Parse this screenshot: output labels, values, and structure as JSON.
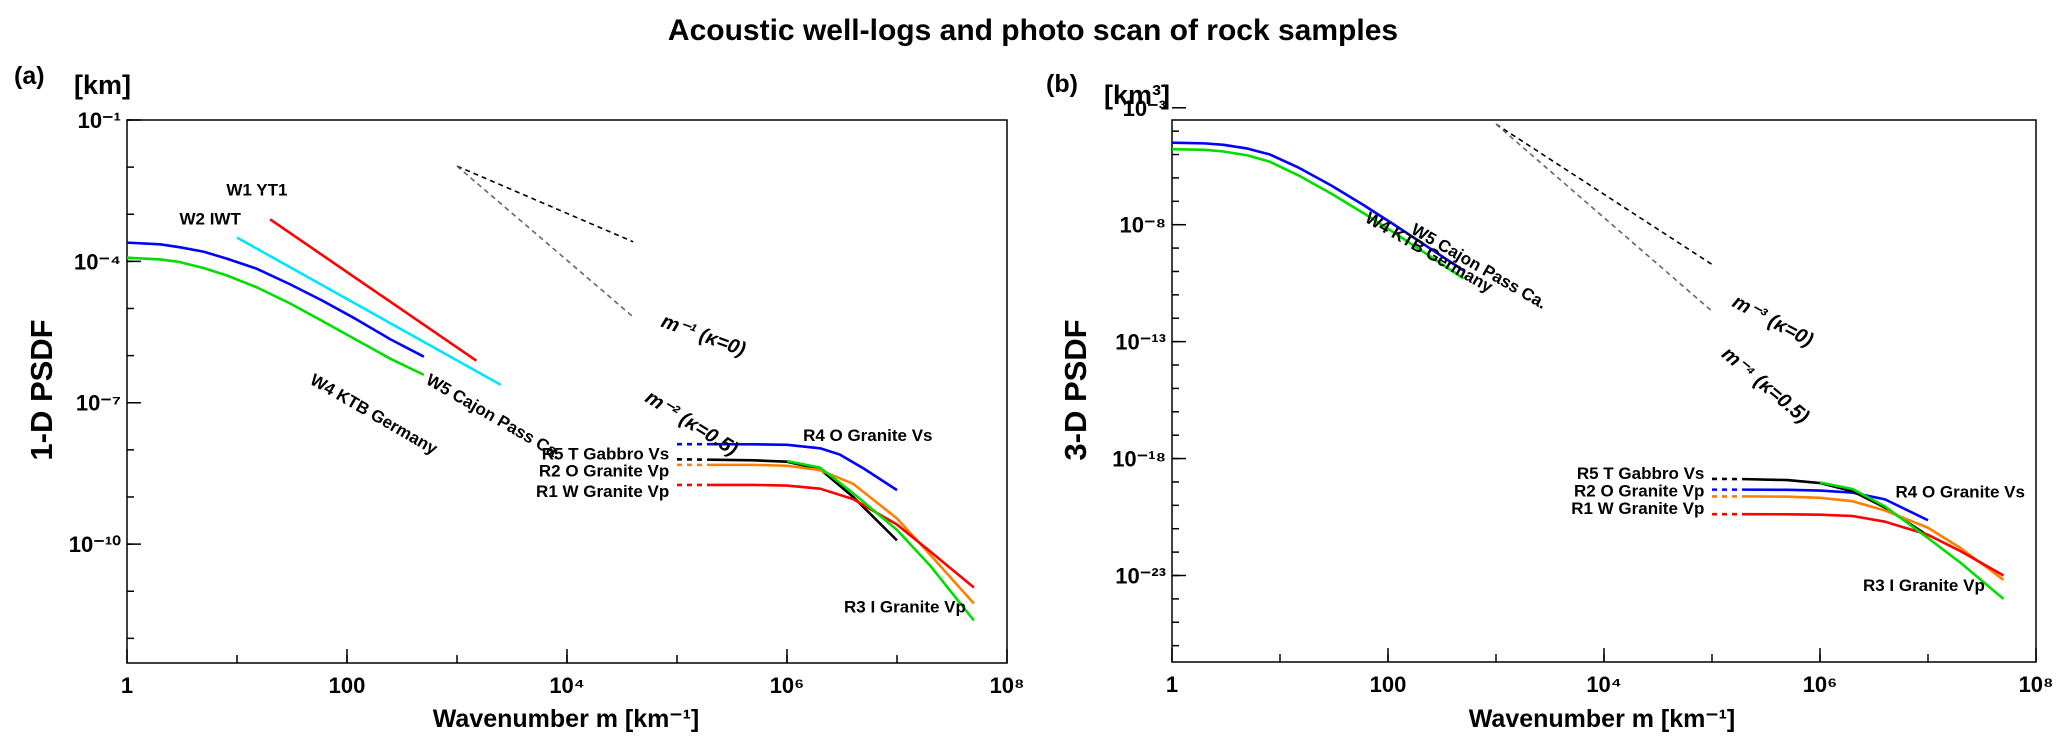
{
  "figure": {
    "title": "Acoustic well-logs and photo scan of rock samples"
  },
  "chart_data": [
    {
      "panel": "(a)",
      "type": "line",
      "unit_label": "[km]",
      "ylabel": "1-D PSDF",
      "xlabel": "Wavenumber m [km⁻¹]",
      "xscale": "log",
      "yscale": "log",
      "xlim": [
        1,
        100000000
      ],
      "ylim": [
        3e-13,
        0.1
      ],
      "xticks": [
        {
          "value": 1,
          "label": "1"
        },
        {
          "value": 100,
          "label": "100"
        },
        {
          "value": 10000,
          "label": "10⁴"
        },
        {
          "value": 1000000,
          "label": "10⁶"
        },
        {
          "value": 100000000,
          "label": "10⁸"
        }
      ],
      "yticks": [
        {
          "value": 0.1,
          "label": "10⁻¹"
        },
        {
          "value": 0.0001,
          "label": "10⁻⁴"
        },
        {
          "value": 1e-07,
          "label": "10⁻⁷"
        },
        {
          "value": 1e-10,
          "label": "10⁻¹⁰"
        }
      ],
      "series": [
        {
          "name": "W1 YT1",
          "color": "#ff0000",
          "label_at": [
            8,
            0.0025
          ],
          "points": [
            [
              20,
              0.00078
            ],
            [
              1500,
              7.8e-07
            ]
          ]
        },
        {
          "name": "W2 IWT",
          "color": "#00e5ff",
          "label_at": [
            3,
            0.0006
          ],
          "points": [
            [
              10,
              0.00032
            ],
            [
              2500,
              2.4e-07
            ]
          ]
        },
        {
          "name": "W5 Cajon Pass Ca.",
          "color": "#0000ff",
          "label_at": [
            510,
            2.6e-07
          ],
          "label_angle": 30,
          "points": [
            [
              1,
              0.00025
            ],
            [
              2,
              0.00023
            ],
            [
              3,
              0.0002
            ],
            [
              5,
              0.00016
            ],
            [
              8,
              0.000115
            ],
            [
              15,
              7.03e-05
            ],
            [
              30,
              3.31e-05
            ],
            [
              60,
              1.46e-05
            ],
            [
              120,
              6e-06
            ],
            [
              250,
              2.2e-06
            ],
            [
              500,
              9.5e-07
            ]
          ]
        },
        {
          "name": "W4 KTB Germany",
          "color": "#00dd00",
          "label_at": [
            45,
            2.6e-07
          ],
          "label_angle": 30,
          "points": [
            [
              1,
              0.00012
            ],
            [
              2,
              0.00011
            ],
            [
              3,
              9.72e-05
            ],
            [
              5,
              7.2e-05
            ],
            [
              8,
              5.08e-05
            ],
            [
              15,
              2.84e-05
            ],
            [
              30,
              1.3e-05
            ],
            [
              60,
              5.4e-06
            ],
            [
              120,
              2.2e-06
            ],
            [
              250,
              8.5e-07
            ],
            [
              500,
              3.9e-07
            ]
          ]
        },
        {
          "name": "R4 O Granite Vs",
          "color": "#0000ff",
          "label_at": [
            1400000,
            1.55e-08
          ],
          "dashed_points": [
            [
              100000,
              1.32e-08
            ],
            [
              200000,
              1.32e-08
            ]
          ],
          "points": [
            [
              200000,
              1.32e-08
            ],
            [
              500000,
              1.31e-08
            ],
            [
              1000000,
              1.28e-08
            ],
            [
              2000000,
              1.08e-08
            ],
            [
              3000000,
              8e-09
            ],
            [
              5000000,
              4e-09
            ],
            [
              10000000,
              1.4e-09
            ]
          ]
        },
        {
          "name": "R5 T Gabbro Vs",
          "color": "#000000",
          "label_at": [
            85000,
            6.3e-09
          ],
          "label_anchor": "end",
          "dashed_points": [
            [
              100000,
              6.3e-09
            ],
            [
              200000,
              6.2e-09
            ]
          ],
          "points": [
            [
              200000,
              6.2e-09
            ],
            [
              500000,
              6e-09
            ],
            [
              1000000,
              5.6e-09
            ],
            [
              2000000,
              3.9e-09
            ],
            [
              4000000,
              1e-09
            ],
            [
              10000000,
              1.2e-10
            ]
          ]
        },
        {
          "name": "R2 O Granite Vp",
          "color": "#ff8000",
          "label_at": [
            85000,
            2.7e-09
          ],
          "label_anchor": "end",
          "dashed_points": [
            [
              100000,
              4.8e-09
            ],
            [
              200000,
              4.8e-09
            ]
          ],
          "points": [
            [
              200000,
              4.8e-09
            ],
            [
              500000,
              4.8e-09
            ],
            [
              1000000,
              4.6e-09
            ],
            [
              2000000,
              3.7e-09
            ],
            [
              4000000,
              1.9e-09
            ],
            [
              10000000,
              3.5e-10
            ],
            [
              20000000,
              6e-11
            ],
            [
              50000000,
              5.5e-12
            ]
          ]
        },
        {
          "name": "R1 W Granite Vp",
          "color": "#ff0000",
          "label_at": [
            85000,
            1e-09
          ],
          "label_anchor": "end",
          "dashed_points": [
            [
              100000,
              1.8e-09
            ],
            [
              200000,
              1.8e-09
            ]
          ],
          "points": [
            [
              200000,
              1.8e-09
            ],
            [
              500000,
              1.8e-09
            ],
            [
              1000000,
              1.75e-09
            ],
            [
              2000000,
              1.5e-09
            ],
            [
              4000000,
              9e-10
            ],
            [
              10000000,
              2.6e-10
            ],
            [
              20000000,
              7e-11
            ],
            [
              50000000,
              1.2e-11
            ]
          ]
        },
        {
          "name": "R3 I Granite Vp",
          "color": "#00dd00",
          "label_at": [
            3300000,
            3.5e-12
          ],
          "points": [
            [
              1000000,
              5.8e-09
            ],
            [
              2000000,
              4.2e-09
            ],
            [
              4000000,
              1.2e-09
            ],
            [
              10000000,
              2e-10
            ],
            [
              20000000,
              3.5e-11
            ],
            [
              50000000,
              2.4e-12
            ]
          ]
        }
      ],
      "reference_slopes": [
        {
          "label": "m⁻¹ (κ=0)",
          "slope": -1,
          "dash": "fine",
          "color": "#000000",
          "label_at": [
            70000,
            4.2e-06
          ],
          "label_angle": 20,
          "points": [
            [
              1000,
              0.0105
            ],
            [
              40000,
              0.00026
            ]
          ]
        },
        {
          "name": "m⁻² (κ=0.5)",
          "label": "m⁻² (κ=0.5)",
          "slope": -2,
          "dash": "fine",
          "color": "#666666",
          "label_at": [
            50000,
            1.1e-07
          ],
          "label_angle": 32,
          "points": [
            [
              1000,
              0.0105
            ],
            [
              40000,
              6.6e-06
            ]
          ]
        }
      ]
    },
    {
      "panel": "(b)",
      "type": "line",
      "unit_label": "[km³]",
      "ylabel": "3-D PSDF",
      "xlabel": "Wavenumber m [km⁻¹]",
      "xscale": "log",
      "yscale": "log",
      "xlim": [
        1,
        100000000
      ],
      "ylim": [
        2e-27,
        0.0003
      ],
      "xticks": [
        {
          "value": 1,
          "label": "1"
        },
        {
          "value": 100,
          "label": "100"
        },
        {
          "value": 10000,
          "label": "10⁴"
        },
        {
          "value": 1000000,
          "label": "10⁶"
        },
        {
          "value": 100000000,
          "label": "10⁸"
        }
      ],
      "yticks": [
        {
          "value": 0.001,
          "label": "10⁻³"
        },
        {
          "value": 1e-08,
          "label": "10⁻⁸"
        },
        {
          "value": 1e-13,
          "label": "10⁻¹³"
        },
        {
          "value": 1e-18,
          "label": "10⁻¹⁸"
        },
        {
          "value": 1e-23,
          "label": "10⁻²³"
        }
      ],
      "series": [
        {
          "name": "W5 Cajon Pass Ca.",
          "color": "#0000ff",
          "label_at": [
            160,
            4.5e-09
          ],
          "label_angle": 30,
          "points": [
            [
              1,
              3.2e-05
            ],
            [
              2,
              3e-05
            ],
            [
              3,
              2.6e-05
            ],
            [
              5,
              1.8e-05
            ],
            [
              8,
              1.02e-05
            ],
            [
              15,
              2.7e-06
            ],
            [
              30,
              4.7e-07
            ],
            [
              60,
              6.7e-08
            ],
            [
              120,
              8.6e-09
            ],
            [
              250,
              9.1e-10
            ],
            [
              500,
              1.1e-10
            ]
          ]
        },
        {
          "name": "W4 KTB Germany",
          "color": "#00dd00",
          "label_at": [
            60,
            1.4e-08
          ],
          "label_angle": 30,
          "points": [
            [
              1,
              1.7e-05
            ],
            [
              2,
              1.6e-05
            ],
            [
              3,
              1.35e-05
            ],
            [
              5,
              9.2e-06
            ],
            [
              8,
              5e-06
            ],
            [
              15,
              1.25e-06
            ],
            [
              30,
              2.1e-07
            ],
            [
              60,
              3e-08
            ],
            [
              120,
              3.9e-09
            ],
            [
              250,
              4.2e-10
            ],
            [
              500,
              5e-11
            ]
          ]
        },
        {
          "name": "R4 O Granite Vs",
          "color": "#0000ff",
          "label_at": [
            5000000,
            2.2e-20
          ],
          "dashed_points": [
            [
              100000,
              4.7e-20
            ],
            [
              200000,
              4.7e-20
            ]
          ],
          "points": [
            [
              200000,
              4.7e-20
            ],
            [
              500000,
              4.6e-20
            ],
            [
              1000000,
              4.3e-20
            ],
            [
              2000000,
              3.5e-20
            ],
            [
              4000000,
              1.8e-20
            ],
            [
              10000000,
              2.3e-21
            ]
          ]
        },
        {
          "name": "R5 T Gabbro Vs",
          "color": "#000000",
          "label_at": [
            85000,
            1.35e-19
          ],
          "label_anchor": "end",
          "dashed_points": [
            [
              100000,
              1.35e-19
            ],
            [
              200000,
              1.32e-19
            ]
          ],
          "points": [
            [
              200000,
              1.32e-19
            ],
            [
              500000,
              1.2e-19
            ],
            [
              1000000,
              9e-20
            ],
            [
              2000000,
              4e-20
            ],
            [
              4000000,
              8e-21
            ],
            [
              10000000,
              5e-22
            ]
          ]
        },
        {
          "name": "R2 O Granite Vp",
          "color": "#ff8000",
          "label_at": [
            85000,
            2.4e-20
          ],
          "label_anchor": "end",
          "dashed_points": [
            [
              100000,
              2.4e-20
            ],
            [
              200000,
              2.4e-20
            ]
          ],
          "points": [
            [
              200000,
              2.4e-20
            ],
            [
              500000,
              2.35e-20
            ],
            [
              1000000,
              2.1e-20
            ],
            [
              2000000,
              1.5e-20
            ],
            [
              4000000,
              6e-21
            ],
            [
              10000000,
              1.1e-21
            ],
            [
              20000000,
              1.5e-22
            ],
            [
              50000000,
              6.5e-24
            ]
          ]
        },
        {
          "name": "R1 W Granite Vp",
          "color": "#ff0000",
          "label_at": [
            85000,
            4.2e-21
          ],
          "label_anchor": "end",
          "dashed_points": [
            [
              100000,
              4.2e-21
            ],
            [
              200000,
              4.2e-21
            ]
          ],
          "points": [
            [
              200000,
              4.2e-21
            ],
            [
              500000,
              4.15e-21
            ],
            [
              1000000,
              4e-21
            ],
            [
              2000000,
              3.5e-21
            ],
            [
              4000000,
              2e-21
            ],
            [
              10000000,
              5.5e-22
            ],
            [
              20000000,
              1.1e-22
            ],
            [
              50000000,
              1e-23
            ]
          ]
        },
        {
          "name": "R3 I Granite Vp",
          "color": "#00dd00",
          "label_at": [
            2500000,
            2.2e-24
          ],
          "points": [
            [
              1000000,
              9.5e-20
            ],
            [
              2000000,
              5e-20
            ],
            [
              4000000,
              9e-21
            ],
            [
              10000000,
              4e-22
            ],
            [
              20000000,
              3.5e-23
            ],
            [
              50000000,
              1e-24
            ]
          ]
        }
      ],
      "reference_slopes": [
        {
          "label": "m⁻³ (κ=0)",
          "slope": -3,
          "dash": "fine",
          "color": "#000000",
          "label_at": [
            150000,
            3.4e-12
          ],
          "label_angle": 28,
          "points": [
            [
              1000,
              0.0002
            ],
            [
              100000,
              2e-10
            ]
          ]
        },
        {
          "label": "m⁻⁴ (κ=0.5)",
          "slope": -4,
          "dash": "fine",
          "color": "#666666",
          "label_at": [
            120000,
            2.5e-14
          ],
          "label_angle": 40,
          "points": [
            [
              1000,
              0.0002
            ],
            [
              100000,
              2e-12
            ]
          ]
        }
      ]
    }
  ]
}
